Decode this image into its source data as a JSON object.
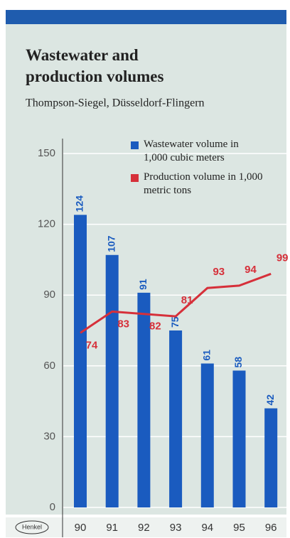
{
  "chart_data": {
    "type": "bar",
    "title": "Wastewater and production volumes",
    "subtitle": "Thompson-Siegel, Düsseldorf-Flingern",
    "logo": "Henkel",
    "categories": [
      "90",
      "91",
      "92",
      "93",
      "94",
      "95",
      "96"
    ],
    "series": [
      {
        "name": "Wastewater volume in 1,000 cubic meters",
        "color": "#1a5bbf",
        "type": "bar",
        "values": [
          124,
          107,
          91,
          75,
          61,
          58,
          42
        ]
      },
      {
        "name": "Production volume in 1,000 metric tons",
        "color": "#d6303a",
        "type": "line",
        "values": [
          74,
          83,
          82,
          81,
          93,
          94,
          99
        ]
      }
    ],
    "ylim": [
      0,
      150
    ],
    "yticks": [
      0,
      30,
      60,
      90,
      120,
      150
    ],
    "grid": true
  }
}
